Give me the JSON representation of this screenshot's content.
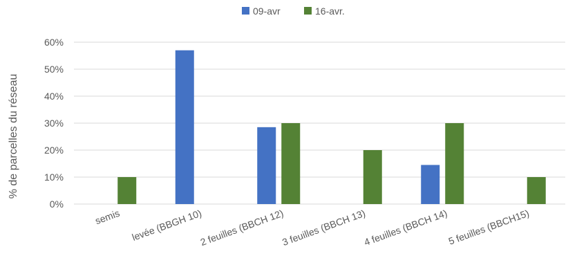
{
  "chart_data": {
    "type": "bar",
    "title": "",
    "xlabel": "",
    "ylabel": "% de parcelles du réseau",
    "categories": [
      "semis",
      "levée (BBGH 10)",
      "2 feuilles (BBCH 12)",
      "3 feuilles (BBCH 13)",
      "4 feuilles (BBCH 14)",
      "5 feuilles (BBCH15)"
    ],
    "series": [
      {
        "name": "09-avr",
        "color": "#4472C4",
        "values": [
          0,
          57,
          28.5,
          0,
          14.5,
          0
        ]
      },
      {
        "name": "16-avr.",
        "color": "#548235",
        "values": [
          10,
          0,
          30,
          20,
          30,
          10
        ]
      }
    ],
    "ylim": [
      0,
      60
    ],
    "yticks": [
      0,
      10,
      20,
      30,
      40,
      50,
      60
    ],
    "ytick_suffix": "%",
    "grid": true,
    "legend_position": "top-center",
    "colors": {
      "grid": "#d9d9d9",
      "text": "#595959"
    }
  }
}
